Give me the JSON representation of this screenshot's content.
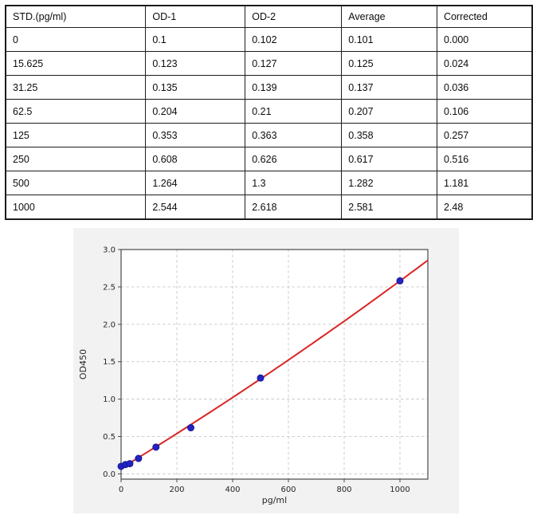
{
  "table": {
    "columns": [
      "STD.(pg/ml)",
      "OD-1",
      "OD-2",
      "Average",
      "Corrected"
    ],
    "rows": [
      [
        "0",
        "0.1",
        "0.102",
        "0.101",
        "0.000"
      ],
      [
        "15.625",
        "0.123",
        "0.127",
        "0.125",
        "0.024"
      ],
      [
        "31.25",
        "0.135",
        "0.139",
        "0.137",
        "0.036"
      ],
      [
        "62.5",
        "0.204",
        "0.21",
        "0.207",
        "0.106"
      ],
      [
        "125",
        "0.353",
        "0.363",
        "0.358",
        "0.257"
      ],
      [
        "250",
        "0.608",
        "0.626",
        "0.617",
        "0.516"
      ],
      [
        "500",
        "1.264",
        "1.3",
        "1.282",
        "1.181"
      ],
      [
        "1000",
        "2.544",
        "2.618",
        "2.581",
        "2.48"
      ]
    ]
  },
  "chart_data": {
    "type": "scatter",
    "title": "",
    "xlabel": "pg/ml",
    "ylabel": "OD450",
    "xlim": [
      0,
      1100
    ],
    "ylim": [
      -0.07,
      3.0
    ],
    "grid": true,
    "legend": "none",
    "xticks": {
      "values": [
        0,
        200,
        400,
        600,
        800,
        1000
      ],
      "labels": [
        "0",
        "200",
        "400",
        "600",
        "800",
        "1000"
      ]
    },
    "yticks": {
      "values": [
        0,
        0.5,
        1.0,
        1.5,
        2.0,
        2.5,
        3.0
      ],
      "labels": [
        "0.0",
        "0.5",
        "1.0",
        "1.5",
        "2.0",
        "2.5",
        "3.0"
      ]
    },
    "points": {
      "name": "standard-points",
      "x": [
        0,
        15.625,
        31.25,
        62.5,
        125,
        250,
        500,
        1000
      ],
      "y": [
        0.101,
        0.125,
        0.137,
        0.207,
        0.358,
        0.617,
        1.282,
        2.581
      ]
    },
    "fit_line": {
      "name": "regression-curve",
      "coeffs": {
        "a": 0.075,
        "b": 0.002275,
        "c": 2.3e-07
      }
    },
    "colors": {
      "point": "#2323c0",
      "point_edge": "#17179a",
      "line": "#d92525",
      "grid": "#c8c8c8",
      "spine": "#4a4a4a",
      "panel": "#f2f2f2",
      "plot_bg": "#ffffff",
      "text": "#262626"
    }
  }
}
